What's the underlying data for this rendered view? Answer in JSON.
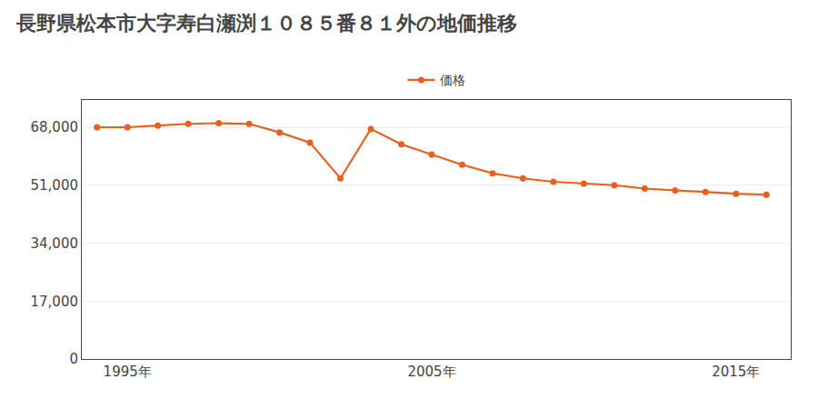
{
  "chart_data": {
    "type": "line",
    "title": "長野県松本市大字寿白瀬渕１０８５番８１外の地価推移",
    "x": [
      1994,
      1995,
      1996,
      1997,
      1998,
      1999,
      2000,
      2001,
      2002,
      2003,
      2004,
      2005,
      2006,
      2007,
      2008,
      2009,
      2010,
      2011,
      2012,
      2013,
      2014,
      2015,
      2016
    ],
    "series": [
      {
        "name": "価格",
        "color": "#e8601c",
        "marker": "circle",
        "line_style": "solid",
        "values": [
          68000,
          68000,
          68500,
          69000,
          69200,
          69000,
          66500,
          63500,
          53000,
          67500,
          63000,
          60000,
          57000,
          54500,
          53000,
          52000,
          51500,
          51000,
          50000,
          49500,
          49000,
          48500,
          48200
        ]
      }
    ],
    "xlim": [
      1993.5,
      2016.8
    ],
    "xticks": [
      {
        "value": 1995,
        "label": "1995年"
      },
      {
        "value": 2005,
        "label": "2005年"
      },
      {
        "value": 2015,
        "label": "2015年"
      }
    ],
    "ylim": [
      0,
      76000
    ],
    "yticks": [
      0,
      {
        "value": 17000,
        "label": "17,000"
      },
      {
        "value": 34000,
        "label": "34,000"
      },
      {
        "value": 51000,
        "label": "51,000"
      },
      {
        "value": 68000,
        "label": "68,000"
      }
    ],
    "grid": "y",
    "legend": "top"
  }
}
